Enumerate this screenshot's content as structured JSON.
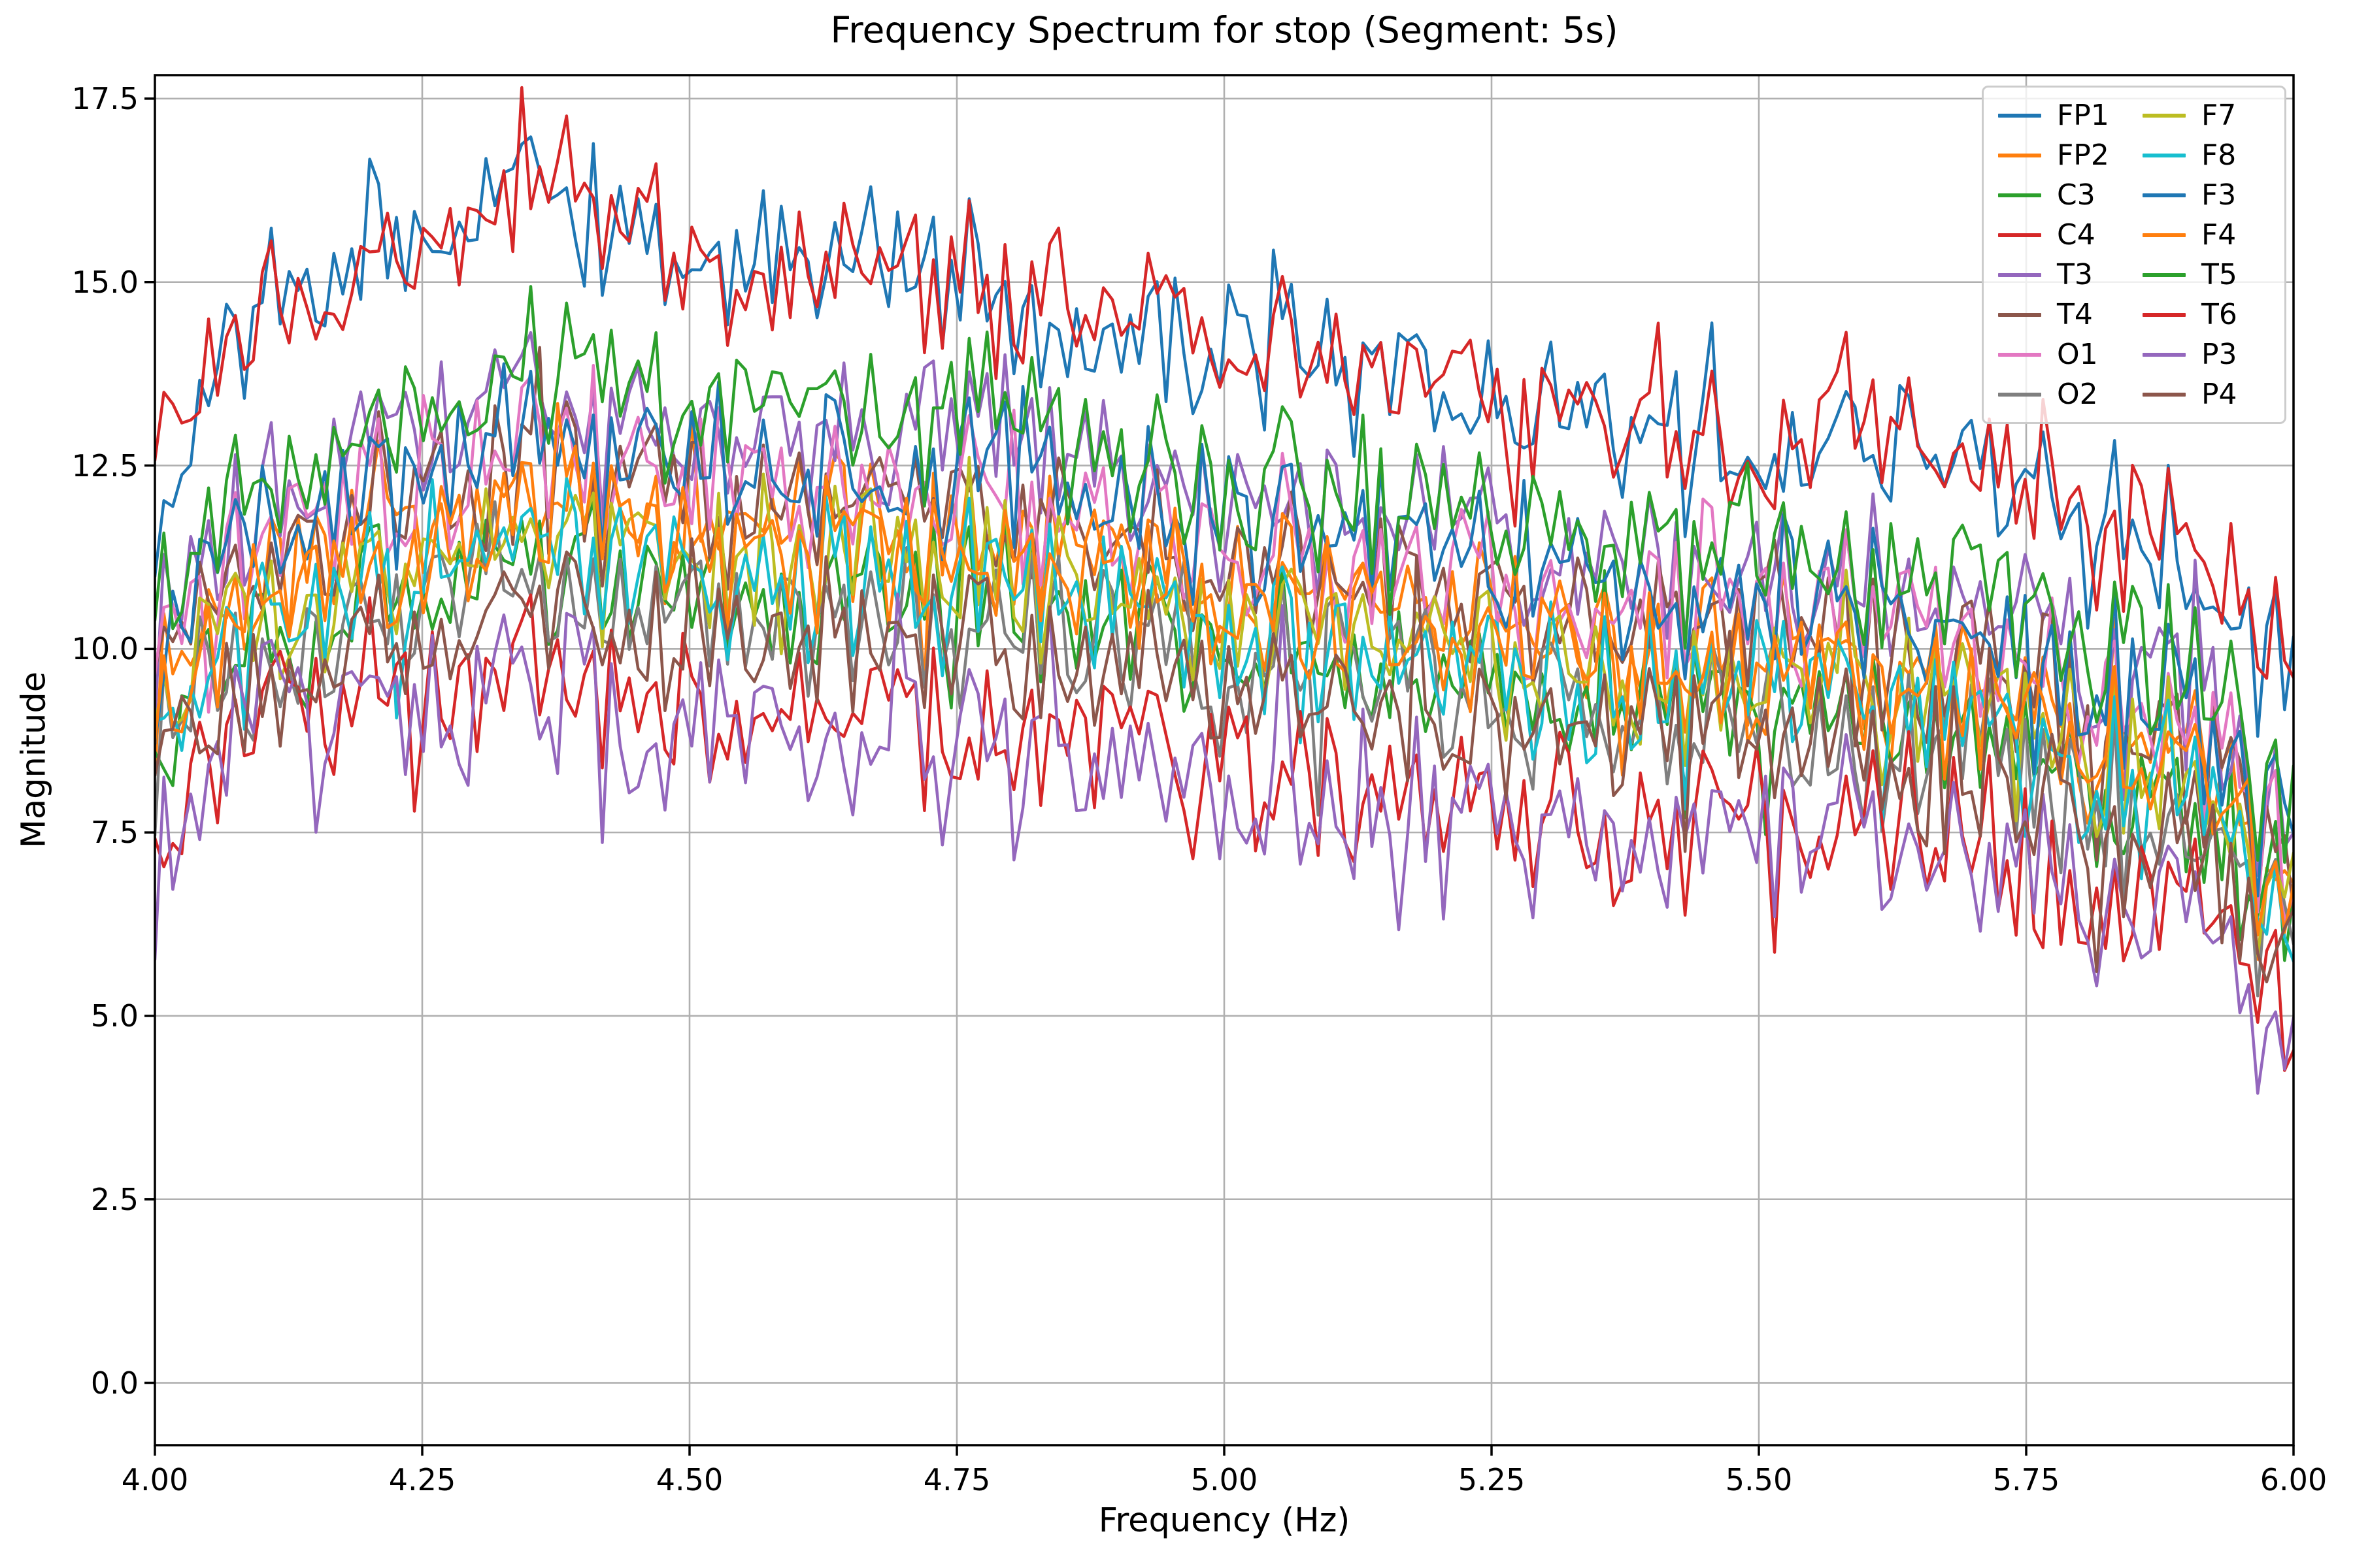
{
  "figure": {
    "title": "Frequency Spectrum for stop (Segment: 5s)",
    "xlabel": "Frequency (Hz)",
    "ylabel": "Magnitude"
  },
  "chart_data": {
    "type": "line",
    "title": "Frequency Spectrum for stop (Segment: 5s)",
    "xlabel": "Frequency (Hz)",
    "ylabel": "Magnitude",
    "xlim": [
      4.0,
      6.0
    ],
    "ylim": [
      -0.85,
      17.82
    ],
    "x_ticks": [
      "4.00",
      "4.25",
      "4.50",
      "4.75",
      "5.00",
      "5.25",
      "5.50",
      "5.75",
      "6.00"
    ],
    "x_tick_values": [
      4.0,
      4.25,
      4.5,
      4.75,
      5.0,
      5.25,
      5.5,
      5.75,
      6.0
    ],
    "y_ticks": [
      "0.0",
      "2.5",
      "5.0",
      "7.5",
      "10.0",
      "12.5",
      "15.0",
      "17.5"
    ],
    "y_tick_values": [
      0,
      2.5,
      5,
      7.5,
      10,
      12.5,
      15,
      17.5
    ],
    "grid": true,
    "grid_color": "#b0b0b0",
    "legend_position": "upper right",
    "legend_columns": 2,
    "n_points": 240,
    "shared_seed": 1337,
    "noise_mix_shared": 0.55,
    "noise_mix_own": 0.75,
    "envelope_x": [
      4.0,
      4.05,
      4.1,
      4.2,
      4.3,
      4.4,
      4.5,
      4.6,
      4.7,
      4.8,
      4.9,
      5.0,
      5.1,
      5.2,
      5.3,
      5.4,
      5.5,
      5.6,
      5.7,
      5.8,
      5.9,
      5.95,
      6.0
    ],
    "series": [
      {
        "name": "FP1",
        "color": "#1f77b4",
        "seed": 1,
        "noise_amp": 1.0,
        "envelope": [
          12.0,
          13.8,
          14.8,
          15.6,
          16.2,
          16.0,
          15.2,
          15.4,
          15.3,
          14.6,
          14.1,
          13.9,
          14.2,
          13.7,
          13.2,
          13.0,
          12.9,
          12.9,
          12.4,
          11.6,
          11.0,
          10.4,
          9.6
        ]
      },
      {
        "name": "FP2",
        "color": "#ff7f0e",
        "seed": 2,
        "noise_amp": 1.05,
        "envelope": [
          9.2,
          10.3,
          11.2,
          11.7,
          12.0,
          12.2,
          11.5,
          11.7,
          11.5,
          11.5,
          11.1,
          10.8,
          10.9,
          10.7,
          10.3,
          10.0,
          10.1,
          9.8,
          9.6,
          9.0,
          8.3,
          7.6,
          6.6
        ]
      },
      {
        "name": "C3",
        "color": "#2ca02c",
        "seed": 3,
        "noise_amp": 1.05,
        "envelope": [
          8.5,
          9.6,
          10.3,
          10.8,
          11.1,
          11.2,
          10.6,
          10.8,
          10.6,
          10.6,
          10.2,
          9.9,
          10.0,
          9.8,
          9.4,
          9.1,
          9.2,
          9.0,
          8.8,
          8.3,
          7.6,
          7.0,
          6.1
        ]
      },
      {
        "name": "C4",
        "color": "#d62728",
        "seed": 4,
        "noise_amp": 1.0,
        "envelope": [
          12.2,
          13.9,
          14.6,
          15.4,
          16.0,
          16.2,
          15.1,
          15.2,
          15.0,
          14.8,
          14.6,
          14.2,
          14.1,
          13.9,
          13.4,
          13.1,
          12.7,
          13.0,
          12.5,
          11.8,
          11.2,
          10.6,
          9.4
        ]
      },
      {
        "name": "T3",
        "color": "#9467bd",
        "seed": 5,
        "noise_amp": 1.05,
        "envelope": [
          10.0,
          11.3,
          12.3,
          13.0,
          13.3,
          13.6,
          12.8,
          13.0,
          12.7,
          12.8,
          12.3,
          11.9,
          12.1,
          11.9,
          11.4,
          11.0,
          11.2,
          10.9,
          10.7,
          10.0,
          9.2,
          8.4,
          7.4
        ]
      },
      {
        "name": "T4",
        "color": "#8c564b",
        "seed": 6,
        "noise_amp": 1.05,
        "envelope": [
          9.4,
          10.6,
          11.4,
          12.0,
          12.3,
          12.5,
          11.8,
          12.0,
          11.7,
          11.8,
          11.4,
          11.0,
          11.2,
          11.0,
          10.6,
          10.2,
          10.4,
          10.1,
          9.9,
          9.2,
          8.5,
          7.8,
          6.8
        ]
      },
      {
        "name": "O1",
        "color": "#e377c2",
        "seed": 7,
        "noise_amp": 1.05,
        "envelope": [
          9.6,
          10.8,
          11.7,
          12.3,
          12.6,
          12.8,
          12.1,
          12.3,
          12.0,
          12.1,
          11.6,
          11.3,
          11.5,
          11.3,
          10.8,
          10.5,
          10.6,
          10.3,
          10.1,
          9.5,
          8.7,
          8.0,
          7.0
        ]
      },
      {
        "name": "O2",
        "color": "#7f7f7f",
        "seed": 8,
        "noise_amp": 1.05,
        "envelope": [
          8.4,
          9.5,
          10.1,
          10.6,
          10.9,
          11.0,
          10.4,
          10.6,
          10.4,
          10.4,
          10.0,
          9.7,
          9.8,
          9.6,
          9.3,
          9.0,
          9.1,
          8.8,
          8.6,
          8.1,
          7.4,
          6.8,
          6.0
        ]
      },
      {
        "name": "F7",
        "color": "#bcbd22",
        "seed": 9,
        "noise_amp": 1.05,
        "envelope": [
          8.9,
          10.0,
          10.7,
          11.2,
          11.5,
          11.7,
          11.1,
          11.2,
          11.0,
          11.0,
          10.6,
          10.3,
          10.4,
          10.2,
          9.8,
          9.5,
          9.6,
          9.4,
          9.2,
          8.6,
          7.9,
          7.2,
          6.3
        ]
      },
      {
        "name": "F8",
        "color": "#17becf",
        "seed": 10,
        "noise_amp": 1.05,
        "envelope": [
          8.7,
          9.8,
          10.5,
          11.0,
          11.3,
          11.4,
          10.8,
          11.0,
          10.8,
          10.8,
          10.4,
          10.1,
          10.2,
          10.0,
          9.6,
          9.3,
          9.4,
          9.2,
          9.0,
          8.4,
          7.7,
          7.1,
          6.2
        ]
      },
      {
        "name": "F3",
        "color": "#1f77b4",
        "seed": 11,
        "noise_amp": 1.05,
        "envelope": [
          9.8,
          11.0,
          12.0,
          12.6,
          12.9,
          13.1,
          12.4,
          12.6,
          12.3,
          12.4,
          11.9,
          11.6,
          11.8,
          11.6,
          11.1,
          10.7,
          10.9,
          10.6,
          10.4,
          9.7,
          8.9,
          8.2,
          7.2
        ]
      },
      {
        "name": "F4",
        "color": "#ff7f0e",
        "seed": 12,
        "noise_amp": 1.05,
        "envelope": [
          9.0,
          10.1,
          10.9,
          11.4,
          11.7,
          11.9,
          11.3,
          11.4,
          11.2,
          11.2,
          10.8,
          10.5,
          10.6,
          10.4,
          10.0,
          9.7,
          9.8,
          9.6,
          9.4,
          8.8,
          8.0,
          7.4,
          6.4
        ]
      },
      {
        "name": "T5",
        "color": "#2ca02c",
        "seed": 13,
        "noise_amp": 1.05,
        "envelope": [
          10.3,
          11.6,
          12.6,
          13.3,
          13.7,
          14.0,
          13.1,
          13.4,
          13.1,
          13.2,
          12.6,
          12.2,
          12.4,
          12.2,
          11.7,
          11.3,
          11.5,
          11.2,
          11.0,
          10.3,
          9.5,
          8.7,
          7.7
        ]
      },
      {
        "name": "T6",
        "color": "#d62728",
        "seed": 14,
        "noise_amp": 1.2,
        "envelope": [
          7.0,
          8.2,
          9.7,
          9.5,
          9.4,
          9.6,
          8.9,
          9.1,
          8.9,
          8.9,
          8.6,
          8.3,
          8.4,
          8.2,
          7.9,
          7.7,
          7.8,
          7.6,
          7.4,
          6.9,
          6.3,
          5.8,
          4.7
        ]
      },
      {
        "name": "P3",
        "color": "#9467bd",
        "seed": 15,
        "noise_amp": 1.2,
        "envelope": [
          6.8,
          8.0,
          9.5,
          9.3,
          9.2,
          9.4,
          8.7,
          8.9,
          8.7,
          8.7,
          8.4,
          8.1,
          8.2,
          8.0,
          7.7,
          7.5,
          7.6,
          7.4,
          7.2,
          6.7,
          6.1,
          5.6,
          4.5
        ]
      },
      {
        "name": "P4",
        "color": "#8c564b",
        "seed": 16,
        "noise_amp": 1.05,
        "envelope": [
          8.1,
          9.1,
          9.8,
          10.2,
          10.5,
          10.6,
          10.0,
          10.2,
          10.0,
          10.0,
          9.7,
          9.4,
          9.5,
          9.3,
          8.9,
          8.7,
          8.8,
          8.5,
          8.3,
          7.8,
          7.1,
          6.5,
          5.8
        ]
      }
    ]
  }
}
